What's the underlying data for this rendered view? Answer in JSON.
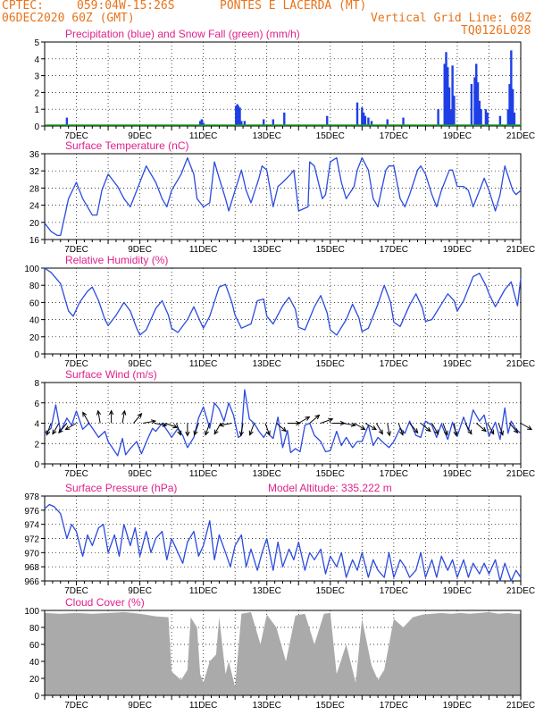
{
  "header": {
    "line1_left": "CPTEC:",
    "line1_coords": "059:04W-15:26S",
    "line1_place": "PONTES E LACERDA (MT)",
    "line2_left": "06DEC2020 60Z (GMT)",
    "line2_right": "Vertical Grid Line: 60Z",
    "line3_right": "TQ0126L028"
  },
  "x_ticks": [
    "7DEC",
    "9DEC",
    "11DEC",
    "13DEC",
    "15DEC",
    "17DEC",
    "19DEC",
    "21DEC"
  ],
  "colors": {
    "header": "#e8731a",
    "title": "#e0218a",
    "line": "#2b4be0",
    "precip": "#1f3fe6",
    "snow": "#1aa11a",
    "cloud": "#aaaaaa",
    "wind_arrow": "#000000"
  },
  "chart_data": [
    {
      "type": "bar",
      "title": "Precipitation (blue) and Snow Fall (green) (mm/h)",
      "ylim": [
        0,
        5
      ],
      "yticks": [
        "0",
        "1",
        "2",
        "3",
        "4",
        "5"
      ],
      "series": [
        {
          "name": "Precipitation",
          "x": [
            6.7,
            10.9,
            10.95,
            11.0,
            12.03,
            12.07,
            12.1,
            12.15,
            12.2,
            12.3,
            12.9,
            13.2,
            13.55,
            14.9,
            15.85,
            16.0,
            16.05,
            16.1,
            16.2,
            16.3,
            16.8,
            17.3,
            18.4,
            18.6,
            18.65,
            18.7,
            18.75,
            18.8,
            18.85,
            18.9,
            19.45,
            19.55,
            19.6,
            19.65,
            19.7,
            19.75,
            19.9,
            19.95,
            20.35,
            20.6,
            20.65,
            20.7,
            20.75,
            20.8
          ],
          "values": [
            0.5,
            0.3,
            0.4,
            0.2,
            1.2,
            1.3,
            1.2,
            1.1,
            0.3,
            0.3,
            0.4,
            0.4,
            0.8,
            0.6,
            1.4,
            1.1,
            0.8,
            0.6,
            0.5,
            0.3,
            0.4,
            0.5,
            1.0,
            3.7,
            4.4,
            3.5,
            2.3,
            1.0,
            3.6,
            1.8,
            2.5,
            2.9,
            3.7,
            2.6,
            1.5,
            1.0,
            1.0,
            0.8,
            0.6,
            1.0,
            2.5,
            4.5,
            2.2,
            0.8
          ]
        },
        {
          "name": "Snow Fall",
          "x": [],
          "values": []
        }
      ]
    },
    {
      "type": "line",
      "title": "Surface Temperature (nC)",
      "ylim": [
        16,
        37
      ],
      "yticks": [
        "16",
        "20",
        "24",
        "28",
        "32",
        "36"
      ],
      "series": [
        {
          "name": "Surface Temperature",
          "x": [
            6.0,
            6.2,
            6.4,
            6.5,
            6.75,
            7.0,
            7.2,
            7.35,
            7.5,
            7.65,
            7.8,
            8.0,
            8.3,
            8.5,
            8.7,
            8.8,
            9.0,
            9.2,
            9.5,
            9.7,
            9.85,
            10.0,
            10.3,
            10.5,
            10.7,
            10.8,
            11.0,
            11.2,
            11.35,
            11.5,
            11.7,
            11.8,
            12.0,
            12.2,
            12.35,
            12.5,
            12.75,
            12.85,
            13.0,
            13.2,
            13.35,
            13.5,
            13.75,
            13.85,
            14.0,
            14.3,
            14.35,
            14.5,
            14.75,
            14.85,
            15.0,
            15.2,
            15.35,
            15.5,
            15.75,
            15.85,
            16.0,
            16.2,
            16.35,
            16.5,
            16.75,
            16.85,
            17.0,
            17.2,
            17.35,
            17.5,
            17.75,
            17.85,
            18.0,
            18.2,
            18.35,
            18.5,
            18.75,
            18.85,
            19.0,
            19.2,
            19.35,
            19.5,
            19.75,
            19.85,
            20.0,
            20.2,
            20.35,
            20.5,
            20.75,
            20.85,
            21.0
          ],
          "values": [
            20,
            18,
            17,
            17,
            26,
            30,
            26,
            24,
            22,
            22,
            28,
            32,
            29,
            26,
            24,
            26,
            30,
            34,
            30,
            26,
            24,
            28,
            32,
            36,
            32,
            26,
            24,
            25,
            35,
            31,
            26,
            23,
            28,
            33,
            28,
            25,
            31,
            34,
            33,
            24,
            29,
            30,
            32,
            33,
            23,
            24,
            35,
            34,
            26,
            27,
            35,
            36,
            30,
            26,
            29,
            33,
            36,
            33,
            26,
            24,
            33,
            34,
            34,
            26,
            24,
            27,
            33,
            34,
            32,
            27,
            24,
            28,
            33,
            33,
            29,
            29,
            28,
            24,
            29,
            31,
            28,
            23,
            27,
            34,
            28,
            27,
            28
          ]
        }
      ]
    },
    {
      "type": "line",
      "title": "Relative Humidity (%)",
      "ylim": [
        0,
        100
      ],
      "yticks": [
        "0",
        "20",
        "40",
        "60",
        "80",
        "100"
      ],
      "series": [
        {
          "name": "Relative Humidity",
          "x": [
            6.0,
            6.2,
            6.5,
            6.75,
            6.9,
            7.1,
            7.35,
            7.5,
            7.7,
            7.9,
            8.0,
            8.25,
            8.5,
            8.7,
            8.9,
            9.0,
            9.2,
            9.5,
            9.7,
            9.9,
            10.0,
            10.2,
            10.5,
            10.7,
            10.9,
            11.0,
            11.2,
            11.5,
            11.7,
            11.9,
            12.0,
            12.2,
            12.5,
            12.7,
            12.9,
            13.0,
            13.2,
            13.5,
            13.7,
            13.9,
            14.0,
            14.2,
            14.5,
            14.7,
            14.9,
            15.0,
            15.2,
            15.5,
            15.7,
            15.9,
            16.0,
            16.2,
            16.5,
            16.7,
            16.9,
            17.0,
            17.2,
            17.5,
            17.7,
            17.9,
            18.0,
            18.2,
            18.5,
            18.7,
            18.9,
            19.0,
            19.2,
            19.5,
            19.7,
            19.9,
            20.0,
            20.2,
            20.5,
            20.7,
            20.9,
            21.0
          ],
          "values": [
            100,
            95,
            82,
            50,
            44,
            60,
            73,
            78,
            62,
            40,
            33,
            45,
            60,
            50,
            30,
            22,
            28,
            53,
            62,
            45,
            30,
            25,
            40,
            55,
            38,
            30,
            44,
            78,
            81,
            60,
            45,
            30,
            35,
            62,
            64,
            44,
            35,
            56,
            66,
            52,
            31,
            28,
            55,
            68,
            48,
            28,
            22,
            40,
            58,
            42,
            26,
            30,
            58,
            80,
            60,
            37,
            32,
            57,
            70,
            54,
            38,
            40,
            58,
            70,
            62,
            50,
            62,
            90,
            94,
            80,
            70,
            55,
            75,
            84,
            56,
            88
          ]
        }
      ]
    },
    {
      "type": "line",
      "title": "Surface Wind (m/s)",
      "ylim": [
        0,
        8
      ],
      "yticks": [
        "0",
        "2",
        "4",
        "6",
        "8"
      ],
      "series": [
        {
          "name": "Surface Wind speed",
          "x": [
            6.0,
            6.2,
            6.35,
            6.5,
            6.7,
            6.85,
            7.0,
            7.2,
            7.4,
            7.55,
            7.7,
            7.9,
            8.0,
            8.3,
            8.45,
            8.55,
            8.7,
            8.9,
            9.05,
            9.25,
            9.4,
            9.5,
            9.7,
            9.9,
            10.0,
            10.2,
            10.35,
            10.5,
            10.7,
            10.85,
            11.0,
            11.2,
            11.35,
            11.5,
            11.65,
            11.8,
            11.95,
            12.1,
            12.2,
            12.3,
            12.45,
            12.6,
            12.75,
            12.9,
            13.0,
            13.2,
            13.35,
            13.5,
            13.65,
            13.75,
            13.9,
            14.05,
            14.2,
            14.35,
            14.5,
            14.7,
            14.85,
            15.0,
            15.2,
            15.35,
            15.5,
            15.7,
            15.85,
            16.0,
            16.2,
            16.35,
            16.5,
            16.7,
            16.85,
            17.0,
            17.2,
            17.35,
            17.5,
            17.7,
            17.85,
            18.0,
            18.2,
            18.35,
            18.5,
            18.7,
            18.85,
            19.0,
            19.2,
            19.35,
            19.5,
            19.7,
            19.85,
            20.0,
            20.2,
            20.35,
            20.5,
            20.6,
            20.7,
            20.85,
            21.0
          ],
          "values": [
            3.0,
            3.5,
            5.8,
            3.2,
            4.5,
            3.8,
            5.2,
            3.4,
            4.0,
            3.3,
            2.6,
            3.2,
            2.2,
            0.8,
            2.5,
            0.9,
            1.5,
            2.2,
            1.0,
            2.5,
            3.5,
            3.2,
            4.0,
            3.1,
            2.6,
            3.5,
            2.8,
            1.6,
            2.6,
            4.5,
            5.6,
            3.5,
            6.0,
            5.4,
            4.2,
            6.0,
            4.8,
            2.6,
            2.8,
            7.3,
            4.4,
            4.0,
            3.2,
            2.6,
            3.1,
            2.5,
            4.6,
            1.6,
            3.3,
            1.1,
            1.5,
            1.2,
            3.8,
            4.0,
            2.8,
            2.2,
            1.2,
            1.3,
            3.2,
            1.8,
            2.6,
            1.6,
            2.2,
            2.2,
            3.8,
            1.8,
            2.6,
            2.0,
            1.6,
            2.2,
            3.5,
            3.0,
            4.2,
            2.8,
            2.6,
            4.2,
            3.8,
            2.6,
            3.9,
            2.4,
            4.1,
            2.7,
            4.6,
            3.3,
            5.3,
            4.2,
            4.8,
            2.7,
            4.1,
            2.4,
            5.5,
            3.0,
            4.2,
            3.4,
            3.0
          ]
        }
      ],
      "arrows": [
        6.2,
        6.45,
        6.7,
        7.0,
        7.4,
        7.75,
        8.1,
        8.45,
        8.8,
        9.1,
        9.45,
        9.8,
        10.15,
        10.5,
        10.85,
        11.2,
        11.55,
        11.9,
        12.25,
        12.6,
        12.95,
        13.3,
        13.65,
        14.0,
        14.35,
        14.7,
        15.05,
        15.4,
        15.75,
        16.1,
        16.45,
        16.8,
        17.15,
        17.5,
        17.85,
        18.2,
        18.55,
        18.9,
        19.25,
        19.6,
        19.95,
        20.3,
        20.65,
        21.0
      ],
      "arrow_dirs": [
        200,
        210,
        220,
        240,
        330,
        350,
        0,
        10,
        40,
        80,
        100,
        110,
        160,
        180,
        200,
        200,
        210,
        260,
        190,
        200,
        160,
        130,
        90,
        60,
        50,
        70,
        90,
        100,
        120,
        120,
        150,
        170,
        160,
        140,
        130,
        150,
        160,
        170,
        150,
        130,
        150,
        160,
        140,
        120
      ]
    },
    {
      "type": "line",
      "title": "Surface Pressure (hPa)",
      "annotation": "Model Altitude: 335.222 m",
      "ylim": [
        966,
        978
      ],
      "yticks": [
        "966",
        "968",
        "970",
        "972",
        "974",
        "976",
        "978"
      ],
      "series": [
        {
          "name": "Surface Pressure",
          "x": [
            6.0,
            6.15,
            6.3,
            6.5,
            6.7,
            6.85,
            7.0,
            7.2,
            7.35,
            7.5,
            7.7,
            7.85,
            8.0,
            8.2,
            8.35,
            8.5,
            8.7,
            8.85,
            9.0,
            9.2,
            9.35,
            9.5,
            9.7,
            9.85,
            10.0,
            10.2,
            10.35,
            10.5,
            10.7,
            10.85,
            11.0,
            11.2,
            11.35,
            11.5,
            11.7,
            11.85,
            12.0,
            12.2,
            12.35,
            12.5,
            12.7,
            12.85,
            13.0,
            13.2,
            13.35,
            13.5,
            13.7,
            13.85,
            14.0,
            14.2,
            14.35,
            14.5,
            14.7,
            14.85,
            15.0,
            15.2,
            15.35,
            15.5,
            15.7,
            15.85,
            16.0,
            16.2,
            16.35,
            16.5,
            16.7,
            16.85,
            17.0,
            17.2,
            17.35,
            17.5,
            17.7,
            17.85,
            18.0,
            18.2,
            18.35,
            18.5,
            18.7,
            18.85,
            19.0,
            19.2,
            19.35,
            19.5,
            19.7,
            19.85,
            20.0,
            20.2,
            20.35,
            20.5,
            20.7,
            20.85,
            21.0
          ],
          "values": [
            976.2,
            976.8,
            976.5,
            975.5,
            972.0,
            974.0,
            973.0,
            969.5,
            972.5,
            971.0,
            973.5,
            974.0,
            970.0,
            972.5,
            969.5,
            974.0,
            971.0,
            973.5,
            969.5,
            973.0,
            970.0,
            972.0,
            973.0,
            969.0,
            972.0,
            970.0,
            968.5,
            971.5,
            973.0,
            969.5,
            971.0,
            974.5,
            969.0,
            972.5,
            970.0,
            968.0,
            971.0,
            972.5,
            968.0,
            970.5,
            967.5,
            970.0,
            972.0,
            967.5,
            971.5,
            968.0,
            970.5,
            969.0,
            971.5,
            967.5,
            970.0,
            969.0,
            970.5,
            967.0,
            969.5,
            968.0,
            970.0,
            966.5,
            969.0,
            967.5,
            970.0,
            966.5,
            969.0,
            967.5,
            966.5,
            970.0,
            966.5,
            969.0,
            968.0,
            966.5,
            967.5,
            970.0,
            966.5,
            969.0,
            966.5,
            969.5,
            967.5,
            969.0,
            966.5,
            969.0,
            966.5,
            968.5,
            967.0,
            968.5,
            967.0,
            969.0,
            966.0,
            968.5,
            966.0,
            967.5,
            966.5
          ]
        }
      ]
    },
    {
      "type": "area",
      "title": "Cloud Cover (%)",
      "ylim": [
        0,
        100
      ],
      "yticks": [
        "0",
        "20",
        "40",
        "60",
        "80",
        "100"
      ],
      "series": [
        {
          "name": "Cloud Cover",
          "x": [
            6.0,
            6.5,
            7.0,
            7.5,
            8.0,
            8.5,
            9.0,
            9.5,
            9.9,
            10.0,
            10.3,
            10.5,
            10.6,
            10.8,
            10.9,
            11.0,
            11.2,
            11.4,
            11.5,
            11.7,
            11.8,
            12.0,
            12.2,
            12.5,
            12.8,
            13.0,
            13.3,
            13.6,
            13.9,
            14.2,
            14.5,
            14.8,
            15.0,
            15.2,
            15.5,
            15.8,
            16.0,
            16.3,
            16.5,
            16.7,
            17.0,
            17.3,
            17.6,
            17.9,
            18.2,
            18.5,
            18.8,
            19.1,
            19.4,
            19.7,
            20.0,
            20.3,
            20.6,
            20.8,
            21.0
          ],
          "values": [
            97,
            96,
            97,
            96,
            97,
            98,
            96,
            93,
            92,
            28,
            18,
            30,
            92,
            80,
            25,
            15,
            40,
            48,
            92,
            25,
            40,
            10,
            96,
            98,
            60,
            95,
            80,
            40,
            94,
            96,
            60,
            96,
            97,
            25,
            60,
            15,
            90,
            35,
            18,
            30,
            90,
            80,
            92,
            95,
            96,
            97,
            96,
            97,
            96,
            97,
            98,
            96,
            97,
            96,
            96
          ]
        }
      ]
    }
  ]
}
